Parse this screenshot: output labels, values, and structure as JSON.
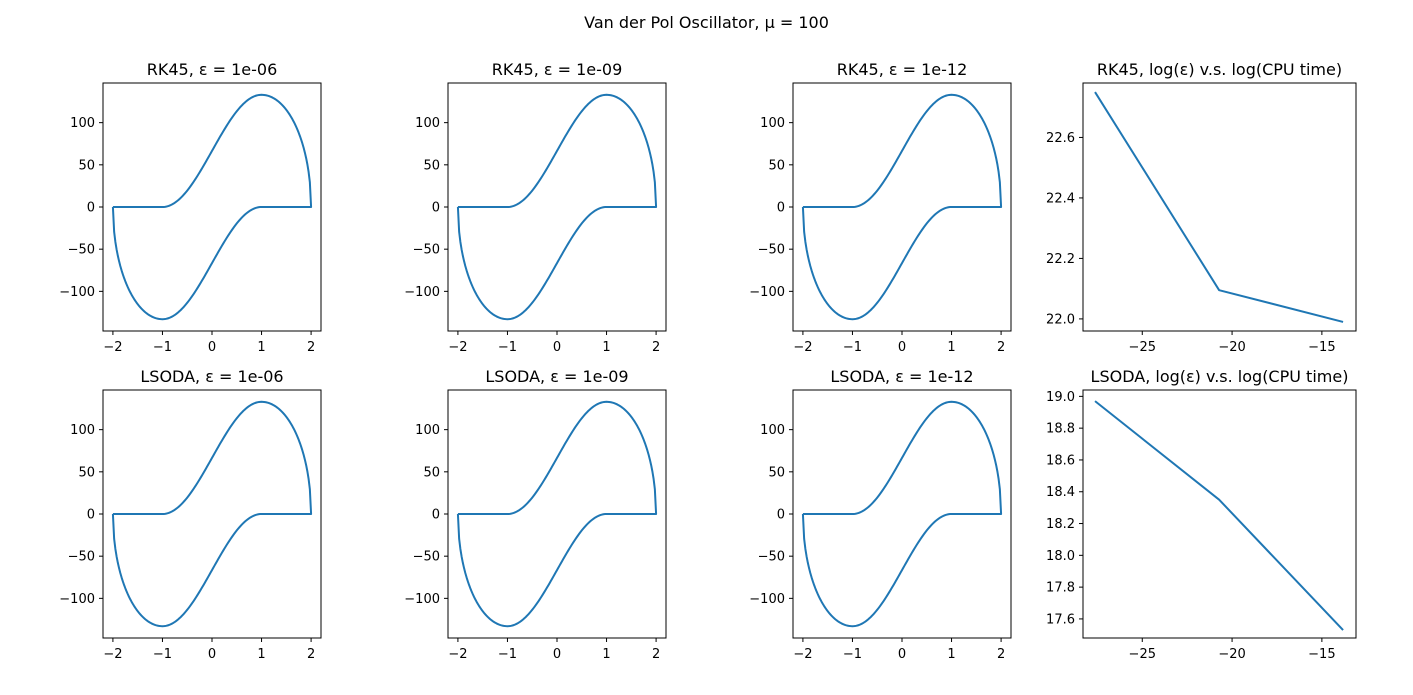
{
  "figure": {
    "title": "Van der Pol Oscillator, μ = 100"
  },
  "colors": {
    "series": "#1f77b4",
    "axes": "#000000",
    "background": "#ffffff"
  },
  "chart_data": [
    {
      "id": "rk45-1e-06",
      "type": "line",
      "title": "RK45, ε = 1e-06",
      "xlabel": "",
      "ylabel": "",
      "xlim": [
        -2.2,
        2.2
      ],
      "ylim": [
        -147,
        147
      ],
      "xticks": [
        -2,
        -1,
        0,
        1,
        2
      ],
      "xticklabels": [
        "−2",
        "−1",
        "0",
        "1",
        "2"
      ],
      "yticks": [
        -100,
        -50,
        0,
        50,
        100
      ],
      "yticklabels": [
        "−100",
        "−50",
        "0",
        "50",
        "100"
      ],
      "grid": false,
      "series": [
        {
          "kind": "vdp_limit_cycle",
          "x_range": [
            -2.0,
            2.0
          ],
          "y_peak": 133,
          "y_peak_at_x": 1.0
        }
      ]
    },
    {
      "id": "rk45-1e-09",
      "type": "line",
      "title": "RK45, ε = 1e-09",
      "xlabel": "",
      "ylabel": "",
      "xlim": [
        -2.2,
        2.2
      ],
      "ylim": [
        -147,
        147
      ],
      "xticks": [
        -2,
        -1,
        0,
        1,
        2
      ],
      "xticklabels": [
        "−2",
        "−1",
        "0",
        "1",
        "2"
      ],
      "yticks": [
        -100,
        -50,
        0,
        50,
        100
      ],
      "yticklabels": [
        "−100",
        "−50",
        "0",
        "50",
        "100"
      ],
      "grid": false,
      "series": [
        {
          "kind": "vdp_limit_cycle",
          "x_range": [
            -2.0,
            2.0
          ],
          "y_peak": 133,
          "y_peak_at_x": 1.0
        }
      ]
    },
    {
      "id": "rk45-1e-12",
      "type": "line",
      "title": "RK45, ε = 1e-12",
      "xlabel": "",
      "ylabel": "",
      "xlim": [
        -2.2,
        2.2
      ],
      "ylim": [
        -147,
        147
      ],
      "xticks": [
        -2,
        -1,
        0,
        1,
        2
      ],
      "xticklabels": [
        "−2",
        "−1",
        "0",
        "1",
        "2"
      ],
      "yticks": [
        -100,
        -50,
        0,
        50,
        100
      ],
      "yticklabels": [
        "−100",
        "−50",
        "0",
        "50",
        "100"
      ],
      "grid": false,
      "series": [
        {
          "kind": "vdp_limit_cycle",
          "x_range": [
            -2.0,
            2.0
          ],
          "y_peak": 133,
          "y_peak_at_x": 1.0
        }
      ]
    },
    {
      "id": "rk45-time",
      "type": "line",
      "title": "RK45, log(ε) v.s. log(CPU time)",
      "xlabel": "",
      "ylabel": "",
      "xlim": [
        -28.3,
        -13.1
      ],
      "ylim": [
        21.96,
        22.78
      ],
      "xticks": [
        -25,
        -20,
        -15
      ],
      "xticklabels": [
        "−25",
        "−20",
        "−15"
      ],
      "yticks": [
        22.0,
        22.2,
        22.4,
        22.6
      ],
      "yticklabels": [
        "22.0",
        "22.2",
        "22.4",
        "22.6"
      ],
      "grid": false,
      "series": [
        {
          "x": [
            -27.63,
            -20.72,
            -13.82
          ],
          "y": [
            22.75,
            22.095,
            21.99
          ]
        }
      ]
    },
    {
      "id": "lsoda-1e-06",
      "type": "line",
      "title": "LSODA, ε = 1e-06",
      "xlabel": "",
      "ylabel": "",
      "xlim": [
        -2.2,
        2.2
      ],
      "ylim": [
        -147,
        147
      ],
      "xticks": [
        -2,
        -1,
        0,
        1,
        2
      ],
      "xticklabels": [
        "−2",
        "−1",
        "0",
        "1",
        "2"
      ],
      "yticks": [
        -100,
        -50,
        0,
        50,
        100
      ],
      "yticklabels": [
        "−100",
        "−50",
        "0",
        "50",
        "100"
      ],
      "grid": false,
      "series": [
        {
          "kind": "vdp_limit_cycle",
          "x_range": [
            -2.0,
            2.0
          ],
          "y_peak": 133,
          "y_peak_at_x": 1.0
        }
      ]
    },
    {
      "id": "lsoda-1e-09",
      "type": "line",
      "title": "LSODA, ε = 1e-09",
      "xlabel": "",
      "ylabel": "",
      "xlim": [
        -2.2,
        2.2
      ],
      "ylim": [
        -147,
        147
      ],
      "xticks": [
        -2,
        -1,
        0,
        1,
        2
      ],
      "xticklabels": [
        "−2",
        "−1",
        "0",
        "1",
        "2"
      ],
      "yticks": [
        -100,
        -50,
        0,
        50,
        100
      ],
      "yticklabels": [
        "−100",
        "−50",
        "0",
        "50",
        "100"
      ],
      "grid": false,
      "series": [
        {
          "kind": "vdp_limit_cycle",
          "x_range": [
            -2.0,
            2.0
          ],
          "y_peak": 133,
          "y_peak_at_x": 1.0
        }
      ]
    },
    {
      "id": "lsoda-1e-12",
      "type": "line",
      "title": "LSODA, ε = 1e-12",
      "xlabel": "",
      "ylabel": "",
      "xlim": [
        -2.2,
        2.2
      ],
      "ylim": [
        -147,
        147
      ],
      "xticks": [
        -2,
        -1,
        0,
        1,
        2
      ],
      "xticklabels": [
        "−2",
        "−1",
        "0",
        "1",
        "2"
      ],
      "yticks": [
        -100,
        -50,
        0,
        50,
        100
      ],
      "yticklabels": [
        "−100",
        "−50",
        "0",
        "50",
        "100"
      ],
      "grid": false,
      "series": [
        {
          "kind": "vdp_limit_cycle",
          "x_range": [
            -2.0,
            2.0
          ],
          "y_peak": 133,
          "y_peak_at_x": 1.0
        }
      ]
    },
    {
      "id": "lsoda-time",
      "type": "line",
      "title": "LSODA, log(ε) v.s. log(CPU time)",
      "xlabel": "",
      "ylabel": "",
      "xlim": [
        -28.3,
        -13.1
      ],
      "ylim": [
        17.48,
        19.04
      ],
      "xticks": [
        -25,
        -20,
        -15
      ],
      "xticklabels": [
        "−25",
        "−20",
        "−15"
      ],
      "yticks": [
        17.6,
        17.8,
        18.0,
        18.2,
        18.4,
        18.6,
        18.8,
        19.0
      ],
      "yticklabels": [
        "17.6",
        "17.8",
        "18.0",
        "18.2",
        "18.4",
        "18.6",
        "18.8",
        "19.0"
      ],
      "grid": false,
      "series": [
        {
          "x": [
            -27.63,
            -20.72,
            -13.82
          ],
          "y": [
            18.97,
            18.35,
            17.53
          ]
        }
      ]
    }
  ]
}
